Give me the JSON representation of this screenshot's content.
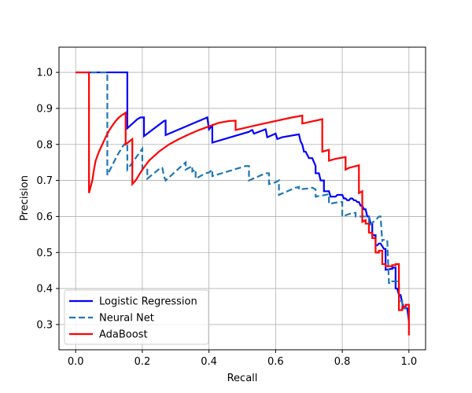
{
  "chart_data": {
    "type": "line",
    "title": "",
    "xlabel": "Recall",
    "ylabel": "Precision",
    "xlim": [
      -0.05,
      1.05
    ],
    "ylim": [
      0.23,
      1.07
    ],
    "xticks": [
      0.0,
      0.2,
      0.4,
      0.6,
      0.8,
      1.0
    ],
    "yticks": [
      0.3,
      0.4,
      0.5,
      0.6,
      0.7,
      0.8,
      0.9,
      1.0
    ],
    "xtick_labels": [
      "0.0",
      "0.2",
      "0.4",
      "0.6",
      "0.8",
      "1.0"
    ],
    "ytick_labels": [
      "0.3",
      "0.4",
      "0.5",
      "0.6",
      "0.7",
      "0.8",
      "0.9",
      "1.0"
    ],
    "grid": true,
    "legend_position": "lower-left",
    "series": [
      {
        "name": "Logistic Regression",
        "color": "#0000ff",
        "style": "solid",
        "x": [
          0.0,
          0.155,
          0.155,
          0.185,
          0.195,
          0.205,
          0.205,
          0.265,
          0.27,
          0.27,
          0.395,
          0.4,
          0.41,
          0.41,
          0.52,
          0.525,
          0.53,
          0.535,
          0.57,
          0.575,
          0.6,
          0.605,
          0.62,
          0.67,
          0.675,
          0.68,
          0.685,
          0.69,
          0.7,
          0.71,
          0.72,
          0.72,
          0.73,
          0.735,
          0.745,
          0.745,
          0.76,
          0.765,
          0.78,
          0.785,
          0.8,
          0.805,
          0.81,
          0.815,
          0.82,
          0.825,
          0.83,
          0.835,
          0.84,
          0.845,
          0.85,
          0.855,
          0.86,
          0.865,
          0.87,
          0.875,
          0.88,
          0.885,
          0.89,
          0.89,
          0.9,
          0.9,
          0.905,
          0.91,
          0.915,
          0.925,
          0.93,
          0.93,
          0.95,
          0.95,
          0.96,
          0.96,
          0.965,
          0.97,
          0.975,
          0.98,
          0.985,
          0.995,
          1.0
        ],
        "y": [
          1.0,
          1.0,
          0.845,
          0.87,
          0.875,
          0.875,
          0.823,
          0.865,
          0.866,
          0.826,
          0.875,
          0.842,
          0.852,
          0.805,
          0.835,
          0.838,
          0.84,
          0.83,
          0.842,
          0.82,
          0.83,
          0.815,
          0.82,
          0.828,
          0.808,
          0.8,
          0.78,
          0.78,
          0.762,
          0.762,
          0.74,
          0.72,
          0.72,
          0.7,
          0.7,
          0.67,
          0.67,
          0.655,
          0.655,
          0.66,
          0.66,
          0.65,
          0.65,
          0.645,
          0.645,
          0.65,
          0.65,
          0.645,
          0.645,
          0.64,
          0.64,
          0.63,
          0.63,
          0.62,
          0.62,
          0.6,
          0.6,
          0.58,
          0.58,
          0.548,
          0.548,
          0.52,
          0.52,
          0.525,
          0.525,
          0.51,
          0.51,
          0.452,
          0.455,
          0.458,
          0.458,
          0.4,
          0.4,
          0.382,
          0.382,
          0.36,
          0.345,
          0.345,
          0.31
        ]
      },
      {
        "name": "Neural Net",
        "color": "#1f77b4",
        "style": "dashed",
        "x": [
          0.045,
          0.095,
          0.095,
          0.125,
          0.145,
          0.15,
          0.155,
          0.155,
          0.2,
          0.2,
          0.2,
          0.215,
          0.215,
          0.255,
          0.26,
          0.265,
          0.27,
          0.32,
          0.33,
          0.33,
          0.35,
          0.35,
          0.36,
          0.36,
          0.39,
          0.4,
          0.41,
          0.41,
          0.51,
          0.52,
          0.52,
          0.57,
          0.58,
          0.58,
          0.6,
          0.61,
          0.61,
          0.66,
          0.67,
          0.67,
          0.7,
          0.71,
          0.72,
          0.72,
          0.75,
          0.76,
          0.76,
          0.79,
          0.8,
          0.8,
          0.83,
          0.84,
          0.84,
          0.87,
          0.88,
          0.88,
          0.9,
          0.9,
          0.91,
          0.915,
          0.92,
          0.92,
          0.935,
          0.94,
          0.95,
          0.95,
          0.97,
          0.97,
          0.98,
          0.98,
          0.99,
          0.99,
          1.0
        ],
        "y": [
          1.0,
          1.0,
          0.715,
          0.77,
          0.8,
          0.802,
          0.805,
          0.73,
          0.788,
          0.788,
          0.73,
          0.73,
          0.705,
          0.735,
          0.735,
          0.712,
          0.7,
          0.742,
          0.75,
          0.73,
          0.74,
          0.725,
          0.73,
          0.705,
          0.72,
          0.722,
          0.73,
          0.712,
          0.74,
          0.74,
          0.7,
          0.72,
          0.72,
          0.69,
          0.695,
          0.7,
          0.66,
          0.68,
          0.682,
          0.675,
          0.678,
          0.68,
          0.675,
          0.655,
          0.66,
          0.662,
          0.635,
          0.64,
          0.64,
          0.6,
          0.61,
          0.61,
          0.6,
          0.6,
          0.6,
          0.575,
          0.59,
          0.59,
          0.6,
          0.6,
          0.53,
          0.535,
          0.535,
          0.415,
          0.415,
          0.42,
          0.42,
          0.365,
          0.365,
          0.345,
          0.345,
          0.35,
          0.35
        ]
      },
      {
        "name": "AdaBoost",
        "color": "#ff0000",
        "style": "solid",
        "x": [
          0.0,
          0.04,
          0.04,
          0.05,
          0.055,
          0.06,
          0.07,
          0.08,
          0.09,
          0.1,
          0.11,
          0.12,
          0.13,
          0.14,
          0.15,
          0.15,
          0.17,
          0.17,
          0.18,
          0.2,
          0.22,
          0.25,
          0.28,
          0.31,
          0.34,
          0.37,
          0.4,
          0.43,
          0.46,
          0.48,
          0.48,
          0.55,
          0.6,
          0.65,
          0.68,
          0.68,
          0.74,
          0.74,
          0.76,
          0.76,
          0.78,
          0.78,
          0.81,
          0.81,
          0.82,
          0.82,
          0.85,
          0.85,
          0.86,
          0.86,
          0.87,
          0.87,
          0.88,
          0.88,
          0.89,
          0.89,
          0.9,
          0.9,
          0.91,
          0.91,
          0.92,
          0.92,
          0.93,
          0.93,
          0.95,
          0.95,
          0.96,
          0.96,
          0.97,
          0.97,
          0.98,
          0.98,
          0.99,
          0.99,
          1.0,
          1.0
        ],
        "y": [
          1.0,
          1.0,
          0.665,
          0.7,
          0.73,
          0.755,
          0.78,
          0.8,
          0.82,
          0.838,
          0.852,
          0.865,
          0.875,
          0.882,
          0.888,
          0.8,
          0.815,
          0.69,
          0.7,
          0.73,
          0.755,
          0.78,
          0.8,
          0.815,
          0.828,
          0.84,
          0.85,
          0.86,
          0.865,
          0.866,
          0.84,
          0.855,
          0.865,
          0.875,
          0.88,
          0.858,
          0.87,
          0.78,
          0.785,
          0.755,
          0.76,
          0.76,
          0.765,
          0.73,
          0.735,
          0.735,
          0.742,
          0.665,
          0.67,
          0.585,
          0.59,
          0.58,
          0.58,
          0.555,
          0.555,
          0.54,
          0.54,
          0.5,
          0.5,
          0.505,
          0.505,
          0.468,
          0.468,
          0.462,
          0.462,
          0.465,
          0.465,
          0.468,
          0.468,
          0.34,
          0.34,
          0.35,
          0.35,
          0.355,
          0.355,
          0.27
        ]
      }
    ]
  }
}
